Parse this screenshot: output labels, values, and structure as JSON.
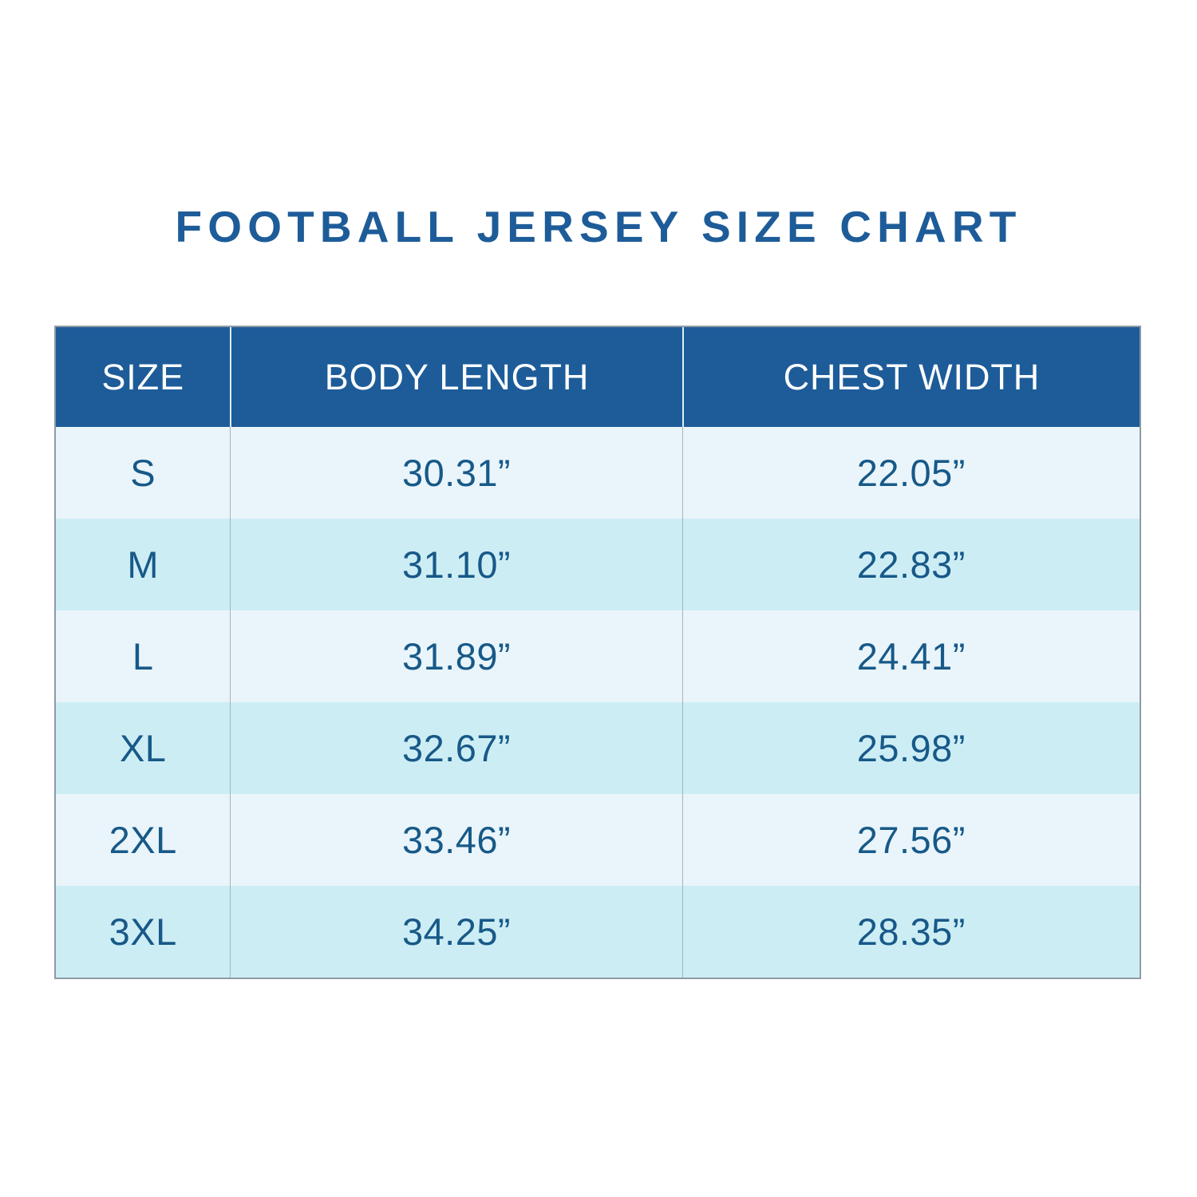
{
  "title": "FOOTBALL JERSEY SIZE CHART",
  "colors": {
    "page_bg": "#ffffff",
    "title_text": "#1d5c99",
    "header_bg": "#1d5c99",
    "header_text": "#ffffff",
    "header_divider": "#dcecf5",
    "row_light": "#e9f5fb",
    "row_dark": "#cdedf5",
    "cell_text": "#175988",
    "table_border": "#8f9ba3",
    "body_divider": "#a7b2b8"
  },
  "chart_data": {
    "type": "table",
    "title": "FOOTBALL JERSEY SIZE CHART",
    "columns": [
      "SIZE",
      "BODY LENGTH",
      "CHEST WIDTH"
    ],
    "rows": [
      [
        "S",
        "30.31”",
        "22.05”"
      ],
      [
        "M",
        "31.10”",
        "22.83”"
      ],
      [
        "L",
        "31.89”",
        "24.41”"
      ],
      [
        "XL",
        "32.67”",
        "25.98”"
      ],
      [
        "2XL",
        "33.46”",
        "27.56”"
      ],
      [
        "3XL",
        "34.25”",
        "28.35”"
      ]
    ],
    "units": "inches",
    "layout": {
      "header_position": "top",
      "row_striping": true,
      "text_align": "center"
    }
  }
}
